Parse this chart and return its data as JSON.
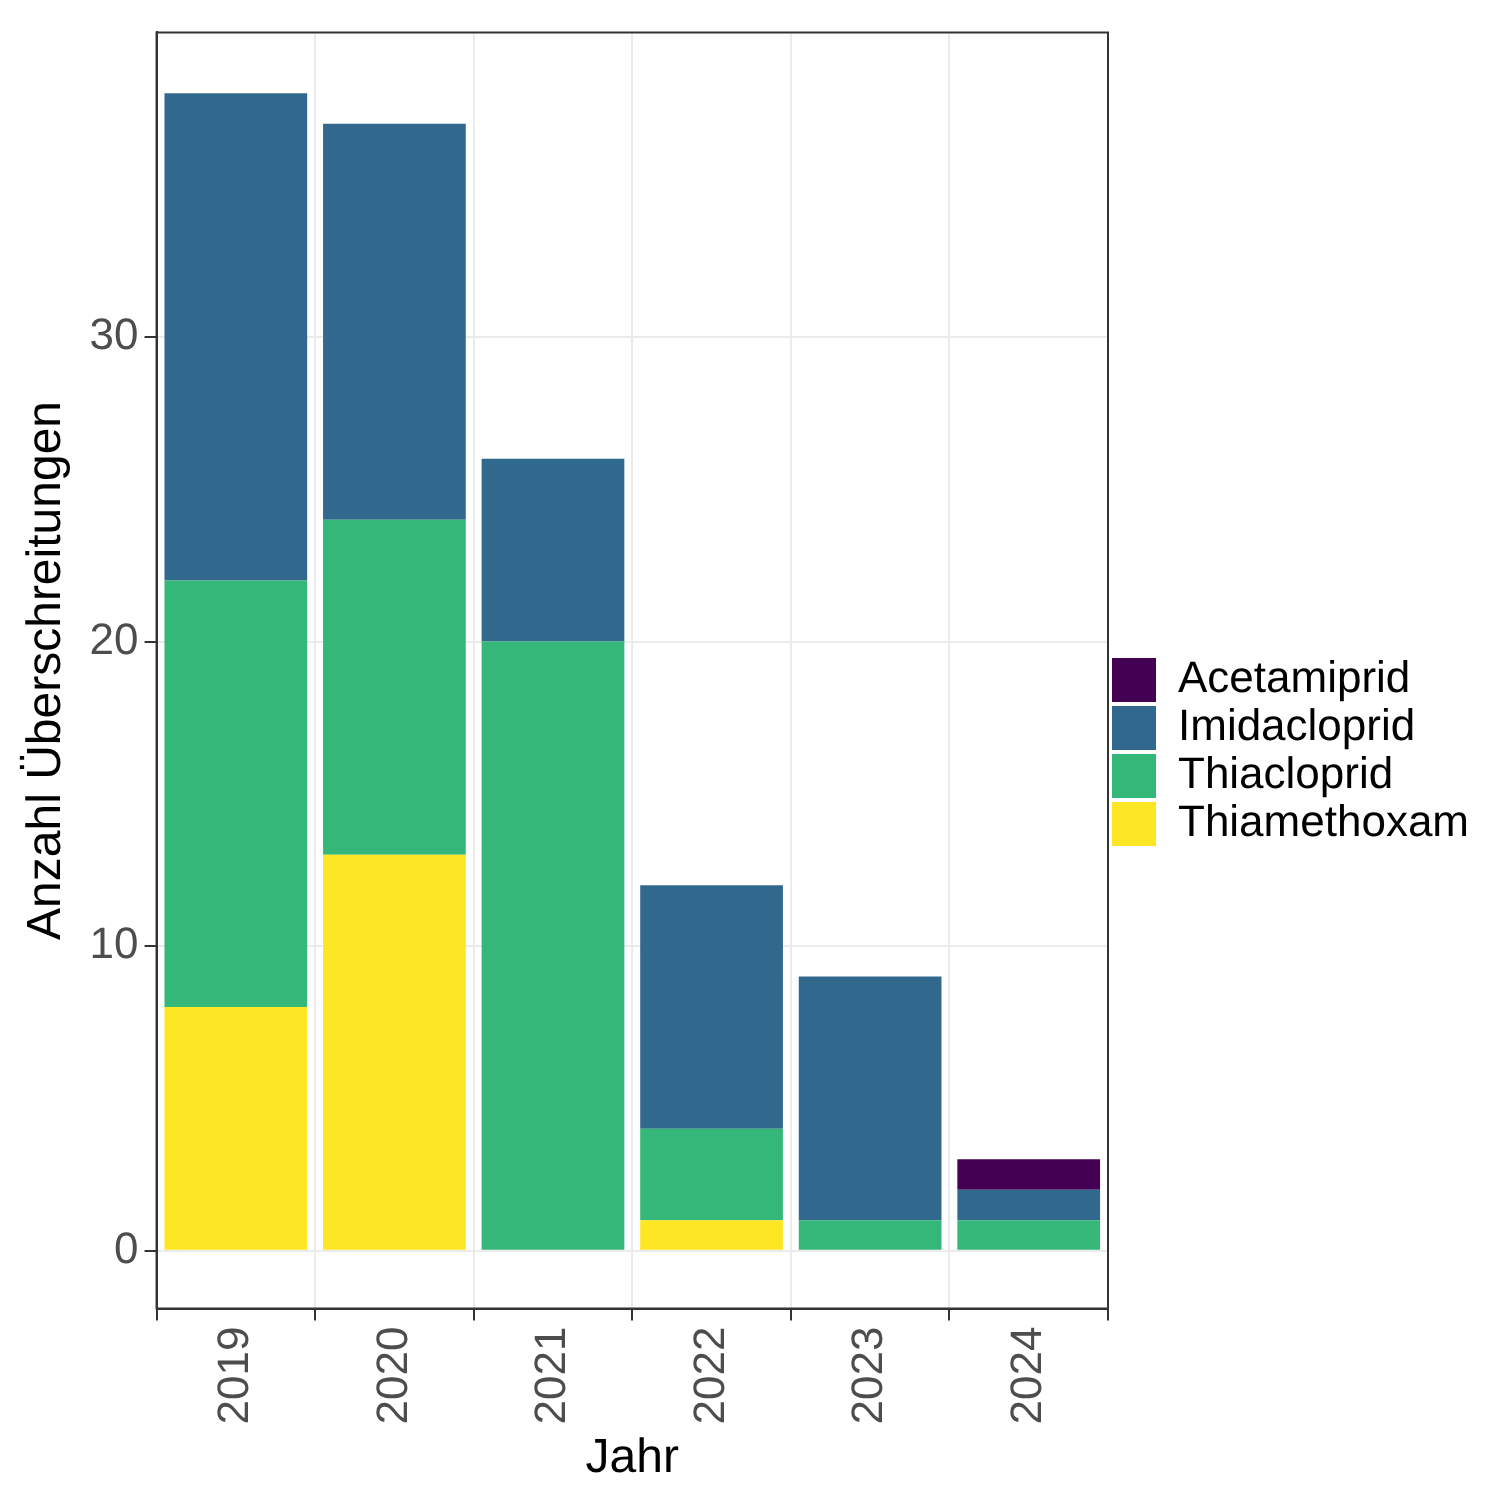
{
  "chart_data": {
    "type": "bar",
    "stacked": true,
    "xlabel": "Jahr",
    "ylabel": "Anzahl Überschreitungen",
    "categories": [
      "2019",
      "2020",
      "2021",
      "2022",
      "2023",
      "2024"
    ],
    "series": [
      {
        "name": "Thiamethoxam",
        "color": "#fde725",
        "values": [
          8,
          13,
          0,
          1,
          0,
          0
        ]
      },
      {
        "name": "Thiacloprid",
        "color": "#35b779",
        "values": [
          14,
          11,
          20,
          3,
          1,
          1
        ]
      },
      {
        "name": "Imidacloprid",
        "color": "#31688e",
        "values": [
          16,
          13,
          6,
          8,
          8,
          1
        ]
      },
      {
        "name": "Acetamiprid",
        "color": "#440154",
        "values": [
          0,
          0,
          0,
          0,
          0,
          1
        ]
      }
    ],
    "ylim": [
      -1.9,
      40
    ],
    "yticks": [
      0,
      10,
      20,
      30
    ],
    "grid": true,
    "legend": "right"
  }
}
